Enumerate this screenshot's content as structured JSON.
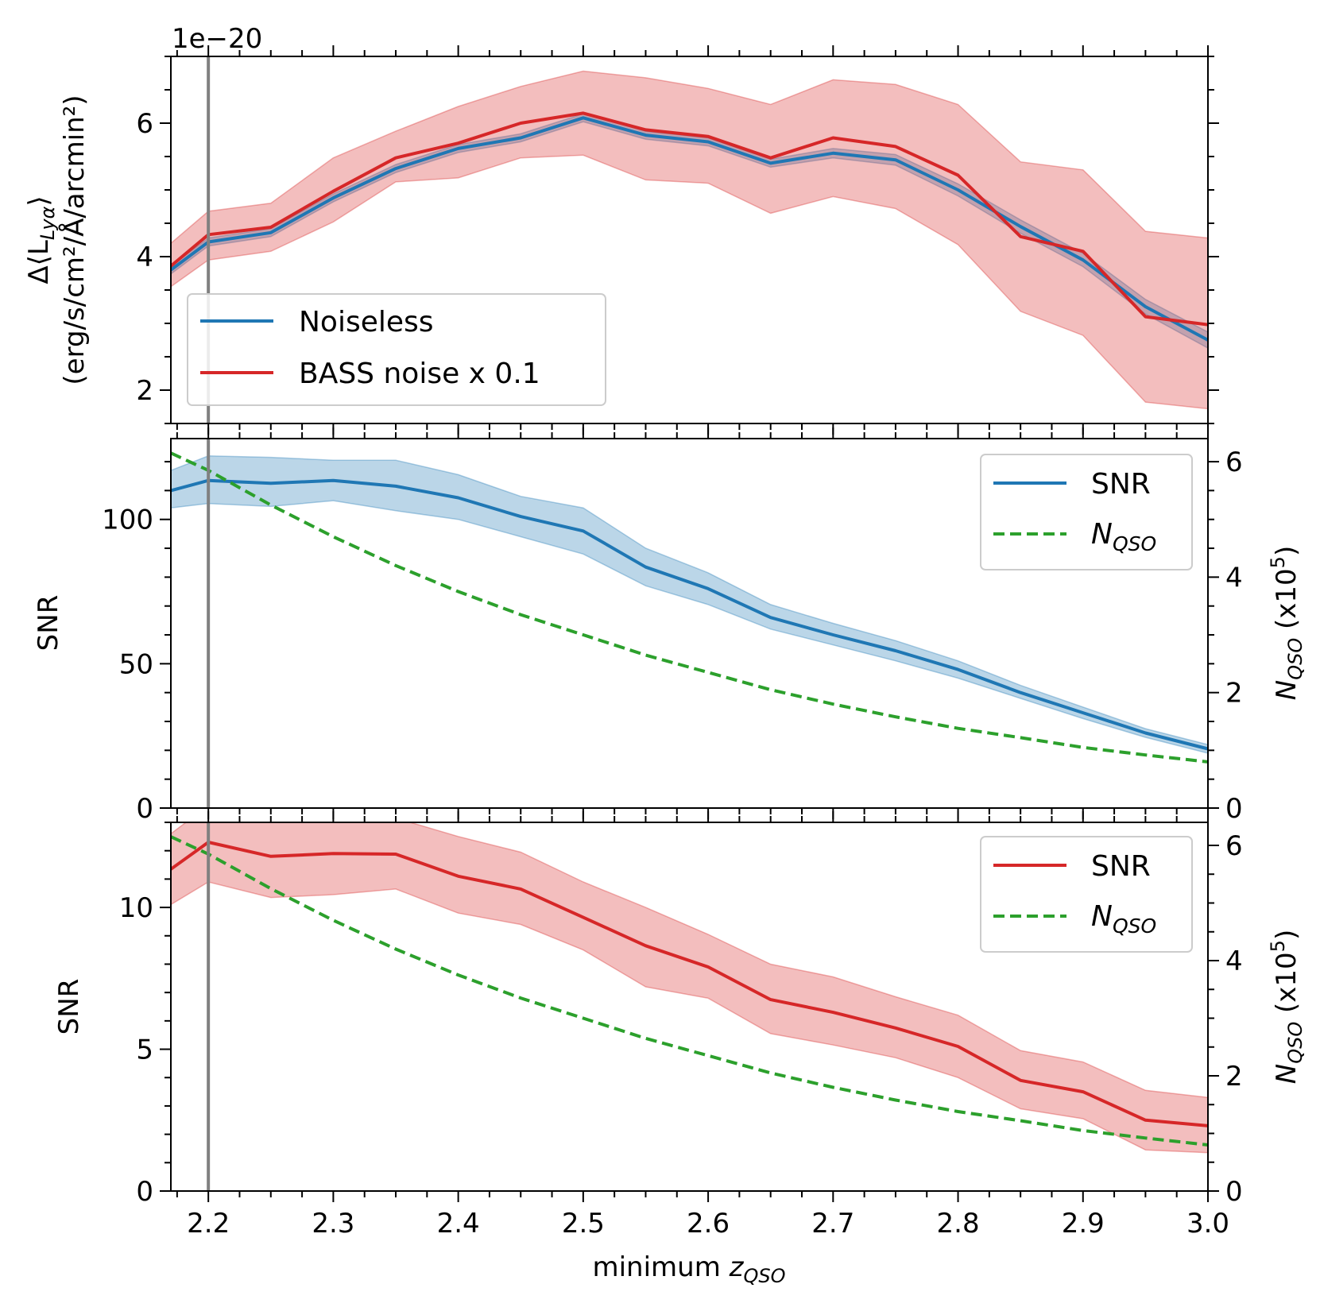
{
  "colors": {
    "blue": "#1f77b4",
    "red": "#d62728",
    "green": "#2ca02c",
    "vline": "#808080",
    "legend_border": "#cccccc"
  },
  "x_axis": {
    "label_text": "minimum ",
    "label_math": "z",
    "label_sub": "QSO",
    "lim": [
      2.17,
      3.0
    ],
    "ticks": [
      2.2,
      2.3,
      2.4,
      2.5,
      2.6,
      2.7,
      2.8,
      2.9,
      3.0
    ],
    "tick_labels": [
      "2.2",
      "2.3",
      "2.4",
      "2.5",
      "2.6",
      "2.7",
      "2.8",
      "2.9",
      "3.0"
    ],
    "minor_step": 0.025
  },
  "vline_x": 2.2,
  "chart_data": [
    {
      "id": "top",
      "type": "line",
      "offset_text": "1e−20",
      "ylabel_line1": "Δ⟨L",
      "ylabel_line1_sub": "Lyα",
      "ylabel_line1_end": "⟩",
      "ylabel_line2": "(erg/s/cm²/Å/arcmin²)",
      "ylim": [
        1.5,
        7.0
      ],
      "yticks": [
        2,
        4,
        6
      ],
      "ytick_labels": [
        "2",
        "4",
        "6"
      ],
      "y_minor_step": 0.5,
      "x": [
        2.17,
        2.2,
        2.25,
        2.3,
        2.35,
        2.4,
        2.45,
        2.5,
        2.55,
        2.6,
        2.65,
        2.7,
        2.75,
        2.8,
        2.85,
        2.9,
        2.95,
        3.0
      ],
      "series": [
        {
          "name": "Noiseless",
          "color_key": "blue",
          "values": [
            3.8,
            4.22,
            4.36,
            4.88,
            5.32,
            5.62,
            5.78,
            6.08,
            5.82,
            5.72,
            5.4,
            5.55,
            5.45,
            5.0,
            4.45,
            3.95,
            3.25,
            2.75
          ],
          "lower": [
            3.74,
            4.16,
            4.3,
            4.82,
            5.26,
            5.56,
            5.72,
            6.02,
            5.76,
            5.66,
            5.34,
            5.48,
            5.37,
            4.91,
            4.35,
            3.85,
            3.14,
            2.63
          ],
          "upper": [
            3.86,
            4.28,
            4.42,
            4.94,
            5.38,
            5.68,
            5.84,
            6.14,
            5.88,
            5.78,
            5.46,
            5.62,
            5.53,
            5.09,
            4.55,
            4.05,
            3.36,
            2.87
          ]
        },
        {
          "name": "BASS noise x 0.1",
          "color_key": "red",
          "values": [
            3.86,
            4.33,
            4.44,
            4.98,
            5.48,
            5.7,
            6.0,
            6.15,
            5.9,
            5.8,
            5.48,
            5.78,
            5.65,
            5.22,
            4.3,
            4.08,
            3.1,
            2.98
          ],
          "lower": [
            3.55,
            3.95,
            4.08,
            4.52,
            5.12,
            5.18,
            5.48,
            5.52,
            5.15,
            5.1,
            4.65,
            4.9,
            4.72,
            4.18,
            3.18,
            2.82,
            1.82,
            1.72
          ],
          "upper": [
            4.2,
            4.68,
            4.8,
            5.48,
            5.88,
            6.25,
            6.55,
            6.78,
            6.68,
            6.52,
            6.28,
            6.65,
            6.58,
            6.28,
            5.42,
            5.3,
            4.38,
            4.28
          ]
        }
      ],
      "legend": {
        "position": "lower-left",
        "entries": [
          "Noiseless",
          "BASS noise x 0.1"
        ]
      }
    },
    {
      "id": "middle",
      "type": "line",
      "ylabel": "SNR",
      "ylim": [
        0,
        128
      ],
      "yticks": [
        0,
        50,
        100
      ],
      "ytick_labels": [
        "0",
        "50",
        "100"
      ],
      "y_minor_step": 10,
      "y2label_math": "N",
      "y2label_sub": "QSO",
      "y2label_end": " (x10",
      "y2label_sup": "5",
      "y2label_close": ")",
      "y2lim": [
        0,
        6.4
      ],
      "y2ticks": [
        0,
        2,
        4,
        6
      ],
      "y2tick_labels": [
        "0",
        "2",
        "4",
        "6"
      ],
      "y2_minor_step": 0.5,
      "x": [
        2.17,
        2.2,
        2.25,
        2.3,
        2.35,
        2.4,
        2.45,
        2.5,
        2.55,
        2.6,
        2.65,
        2.7,
        2.75,
        2.8,
        2.85,
        2.9,
        2.95,
        3.0
      ],
      "series": [
        {
          "name": "SNR",
          "color_key": "blue",
          "axis": "left",
          "values": [
            110,
            113.5,
            112.5,
            113.5,
            111.5,
            107.5,
            101,
            96,
            83.5,
            76,
            66,
            60,
            54.5,
            48,
            40,
            33,
            26,
            20.5
          ],
          "lower": [
            104,
            105.5,
            104.5,
            106.5,
            103,
            100,
            94,
            88,
            77,
            70.5,
            62,
            56.5,
            51,
            45,
            38,
            31,
            24.5,
            19
          ],
          "upper": [
            117,
            122,
            121.5,
            120.5,
            120.5,
            115.5,
            108,
            104,
            90,
            81.5,
            70.5,
            64,
            58,
            51,
            42.5,
            35,
            27.5,
            22
          ]
        },
        {
          "name": "N_QSO",
          "color_key": "green",
          "axis": "right",
          "dashed": true,
          "values": [
            6.15,
            5.85,
            5.25,
            4.7,
            4.2,
            3.75,
            3.35,
            3.0,
            2.65,
            2.35,
            2.05,
            1.8,
            1.58,
            1.38,
            1.22,
            1.05,
            0.92,
            0.8
          ]
        }
      ],
      "legend": {
        "position": "upper-right",
        "entries": [
          "SNR",
          "N_QSO"
        ]
      }
    },
    {
      "id": "bottom",
      "type": "line",
      "ylabel": "SNR",
      "ylim": [
        0,
        13.0
      ],
      "yticks": [
        0,
        5,
        10
      ],
      "ytick_labels": [
        "0",
        "5",
        "10"
      ],
      "y_minor_step": 1,
      "y2label_math": "N",
      "y2label_sub": "QSO",
      "y2label_end": " (x10",
      "y2label_sup": "5",
      "y2label_close": ")",
      "y2lim": [
        0,
        6.4
      ],
      "y2ticks": [
        0,
        2,
        4,
        6
      ],
      "y2tick_labels": [
        "0",
        "2",
        "4",
        "6"
      ],
      "y2_minor_step": 0.5,
      "x": [
        2.17,
        2.2,
        2.25,
        2.3,
        2.35,
        2.4,
        2.45,
        2.5,
        2.55,
        2.6,
        2.65,
        2.7,
        2.75,
        2.8,
        2.85,
        2.9,
        2.95,
        3.0
      ],
      "series": [
        {
          "name": "SNR",
          "color_key": "red",
          "axis": "left",
          "values": [
            11.35,
            12.3,
            11.8,
            11.9,
            11.88,
            11.1,
            10.65,
            9.65,
            8.65,
            7.9,
            6.75,
            6.3,
            5.75,
            5.1,
            3.9,
            3.5,
            2.5,
            2.3
          ],
          "lower": [
            10.1,
            10.9,
            10.35,
            10.45,
            10.65,
            9.8,
            9.4,
            8.5,
            7.2,
            6.8,
            5.55,
            5.15,
            4.7,
            4.0,
            2.9,
            2.55,
            1.45,
            1.35
          ],
          "upper": [
            12.6,
            13.6,
            13.2,
            13.45,
            13.15,
            12.5,
            11.95,
            10.9,
            10.0,
            9.05,
            8.0,
            7.55,
            6.85,
            6.2,
            4.95,
            4.55,
            3.55,
            3.3
          ]
        },
        {
          "name": "N_QSO",
          "color_key": "green",
          "axis": "right",
          "dashed": true,
          "values": [
            6.15,
            5.85,
            5.25,
            4.7,
            4.2,
            3.75,
            3.35,
            3.0,
            2.65,
            2.35,
            2.05,
            1.8,
            1.58,
            1.38,
            1.22,
            1.05,
            0.92,
            0.8
          ]
        }
      ],
      "legend": {
        "position": "upper-right",
        "entries": [
          "SNR",
          "N_QSO"
        ]
      }
    }
  ]
}
